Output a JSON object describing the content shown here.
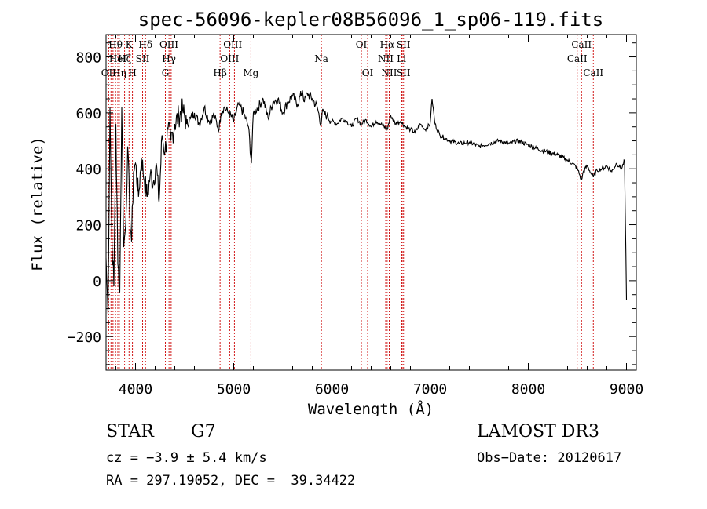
{
  "chart_data": {
    "type": "line",
    "title": "spec-56096-kepler08B56096_1_sp06-119.fits",
    "xlabel": "Wavelength (Å)",
    "ylabel": "Flux (relative)",
    "xlim": [
      3700,
      9100
    ],
    "ylim": [
      -320,
      880
    ],
    "x_ticks": [
      4000,
      5000,
      6000,
      7000,
      8000,
      9000
    ],
    "x_tick_labels": [
      "4000",
      "5000",
      "6000",
      "7000",
      "8000",
      "9000"
    ],
    "y_ticks": [
      -200,
      0,
      200,
      400,
      600,
      800
    ],
    "y_tick_labels": [
      "−200",
      "0",
      "200",
      "400",
      "600",
      "800"
    ],
    "series": [
      {
        "name": "flux",
        "color": "#000000",
        "x": [
          3700,
          3720,
          3740,
          3760,
          3780,
          3800,
          3820,
          3840,
          3860,
          3880,
          3900,
          3920,
          3940,
          3960,
          3980,
          4000,
          4030,
          4060,
          4090,
          4120,
          4150,
          4180,
          4210,
          4240,
          4270,
          4300,
          4330,
          4360,
          4400,
          4440,
          4480,
          4520,
          4560,
          4600,
          4650,
          4700,
          4750,
          4800,
          4850,
          4870,
          4900,
          4950,
          5000,
          5050,
          5100,
          5150,
          5180,
          5200,
          5250,
          5300,
          5350,
          5400,
          5450,
          5500,
          5550,
          5600,
          5650,
          5700,
          5720,
          5750,
          5800,
          5850,
          5890,
          5900,
          5950,
          6000,
          6050,
          6100,
          6150,
          6200,
          6250,
          6300,
          6350,
          6400,
          6450,
          6500,
          6563,
          6600,
          6650,
          6700,
          6750,
          6800,
          6850,
          6900,
          6950,
          7000,
          7020,
          7050,
          7100,
          7150,
          7200,
          7300,
          7400,
          7500,
          7600,
          7700,
          7800,
          7900,
          8000,
          8100,
          8200,
          8300,
          8400,
          8450,
          8500,
          8542,
          8560,
          8600,
          8662,
          8700,
          8750,
          8800,
          8850,
          8900,
          8950,
          8980,
          9000
        ],
        "y": [
          80,
          -120,
          620,
          150,
          -20,
          560,
          60,
          -40,
          620,
          120,
          200,
          480,
          260,
          140,
          390,
          420,
          300,
          440,
          360,
          300,
          380,
          350,
          420,
          280,
          520,
          460,
          540,
          500,
          560,
          590,
          610,
          560,
          580,
          600,
          560,
          620,
          570,
          590,
          540,
          600,
          620,
          600,
          570,
          630,
          600,
          550,
          420,
          600,
          620,
          650,
          580,
          640,
          650,
          600,
          640,
          660,
          630,
          680,
          640,
          670,
          650,
          620,
          560,
          600,
          590,
          570,
          560,
          580,
          570,
          550,
          580,
          560,
          575,
          550,
          570,
          560,
          540,
          590,
          560,
          570,
          550,
          540,
          530,
          560,
          540,
          560,
          650,
          560,
          520,
          510,
          500,
          490,
          495,
          480,
          490,
          500,
          490,
          500,
          485,
          470,
          460,
          450,
          430,
          420,
          400,
          360,
          390,
          410,
          370,
          395,
          400,
          410,
          390,
          420,
          400,
          430,
          -70
        ]
      }
    ],
    "annotations": [
      {
        "text": "Hθ",
        "x": 3797,
        "row": 1
      },
      {
        "text": "OII",
        "x": 3727,
        "row": 3
      },
      {
        "text": "Hη",
        "x": 3835,
        "row": 3
      },
      {
        "text": "HeI",
        "x": 3820,
        "row": 2
      },
      {
        "text": "Hζ",
        "x": 3889,
        "row": 2
      },
      {
        "text": "K",
        "x": 3934,
        "row": 1
      },
      {
        "text": "H",
        "x": 3969,
        "row": 3
      },
      {
        "text": "SII",
        "x": 4072,
        "row": 2
      },
      {
        "text": "Hδ",
        "x": 4102,
        "row": 1
      },
      {
        "text": "OIII",
        "x": 4340,
        "row": 1
      },
      {
        "text": "Hγ",
        "x": 4341,
        "row": 2
      },
      {
        "text": "G",
        "x": 4304,
        "row": 3
      },
      {
        "text": "Hβ",
        "x": 4861,
        "row": 3
      },
      {
        "text": "OIII",
        "x": 4990,
        "row": 1
      },
      {
        "text": "OIII",
        "x": 4959,
        "row": 2
      },
      {
        "text": "Mg",
        "x": 5175,
        "row": 3
      },
      {
        "text": "Na",
        "x": 5893,
        "row": 2
      },
      {
        "text": "OI",
        "x": 6300,
        "row": 1
      },
      {
        "text": "OI",
        "x": 6364,
        "row": 3
      },
      {
        "text": "Hα",
        "x": 6563,
        "row": 1
      },
      {
        "text": "NII",
        "x": 6548,
        "row": 2
      },
      {
        "text": "NII",
        "x": 6584,
        "row": 3
      },
      {
        "text": "SII",
        "x": 6730,
        "row": 1
      },
      {
        "text": "Li",
        "x": 6708,
        "row": 2
      },
      {
        "text": "SII",
        "x": 6730,
        "row": 3
      },
      {
        "text": "CaII",
        "x": 8542,
        "row": 1
      },
      {
        "text": "CaII",
        "x": 8498,
        "row": 2
      },
      {
        "text": "CaII",
        "x": 8662,
        "row": 3
      }
    ],
    "line_markers": [
      3727,
      3750,
      3771,
      3797,
      3820,
      3835,
      3889,
      3934,
      3969,
      4072,
      4102,
      4304,
      4341,
      4363,
      4861,
      4959,
      5007,
      5175,
      5893,
      6300,
      6364,
      6548,
      6563,
      6584,
      6708,
      6716,
      6730,
      8498,
      8542,
      8662
    ],
    "marker_color": "#cc0000"
  },
  "info": {
    "object_class": "STAR",
    "subclass": "G7",
    "survey": "LAMOST DR3",
    "redshift": "cz = −3.9 ± 5.4 km/s",
    "obs_date": "Obs−Date: 20120617",
    "coords": "RA = 297.19052, DEC =  39.34422"
  }
}
